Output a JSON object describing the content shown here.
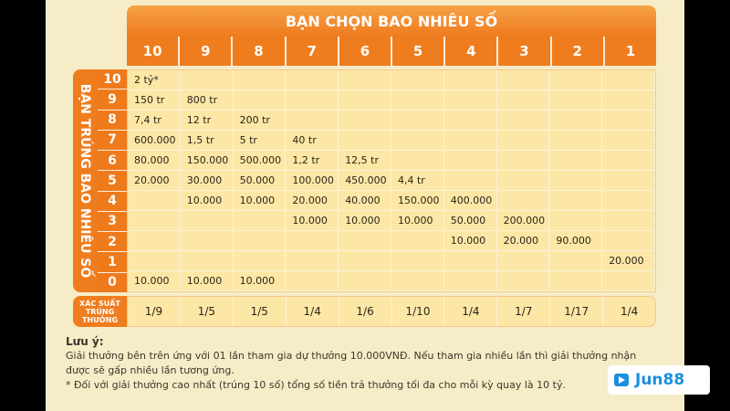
{
  "header": {
    "title": "BẠN CHỌN BAO NHIÊU SỐ",
    "columns": [
      "10",
      "9",
      "8",
      "7",
      "6",
      "5",
      "4",
      "3",
      "2",
      "1"
    ]
  },
  "side_label": "BẠN TRÚNG BAO NHIÊU SỐ",
  "row_labels": [
    "10",
    "9",
    "8",
    "7",
    "6",
    "5",
    "4",
    "3",
    "2",
    "1",
    "0"
  ],
  "prize_table": [
    [
      "2 tỷ*",
      "",
      "",
      "",
      "",
      "",
      "",
      "",
      "",
      ""
    ],
    [
      "150 tr",
      "800 tr",
      "",
      "",
      "",
      "",
      "",
      "",
      "",
      ""
    ],
    [
      "7,4 tr",
      "12 tr",
      "200 tr",
      "",
      "",
      "",
      "",
      "",
      "",
      ""
    ],
    [
      "600.000",
      "1,5 tr",
      "5 tr",
      "40 tr",
      "",
      "",
      "",
      "",
      "",
      ""
    ],
    [
      "80.000",
      "150.000",
      "500.000",
      "1,2 tr",
      "12,5 tr",
      "",
      "",
      "",
      "",
      ""
    ],
    [
      "20.000",
      "30.000",
      "50.000",
      "100.000",
      "450.000",
      "4,4 tr",
      "",
      "",
      "",
      ""
    ],
    [
      "",
      "10.000",
      "10.000",
      "20.000",
      "40.000",
      "150.000",
      "400.000",
      "",
      "",
      ""
    ],
    [
      "",
      "",
      "",
      "10.000",
      "10.000",
      "10.000",
      "50.000",
      "200.000",
      "",
      ""
    ],
    [
      "",
      "",
      "",
      "",
      "",
      "",
      "10.000",
      "20.000",
      "90.000",
      ""
    ],
    [
      "",
      "",
      "",
      "",
      "",
      "",
      "",
      "",
      "",
      "20.000"
    ],
    [
      "10.000",
      "10.000",
      "10.000",
      "",
      "",
      "",
      "",
      "",
      "",
      ""
    ]
  ],
  "probability": {
    "label_lines": [
      "XÁC SUẤT",
      "TRÚNG",
      "THƯỞNG"
    ],
    "values": [
      "1/9",
      "1/5",
      "1/5",
      "1/4",
      "1/6",
      "1/10",
      "1/4",
      "1/7",
      "1/17",
      "1/4"
    ]
  },
  "note": {
    "title": "Lưu ý:",
    "line1": "Giải thưởng bên trên ứng với 01 lần tham gia dự thưởng 10.000VNĐ. Nếu tham gia nhiều lần thì giải thưởng nhận",
    "line2": "được sẽ gấp nhiều lần tương ứng.",
    "line3": "*  Đối với giải thưởng cao nhất (trúng 10 số) tổng số tiền trả thưởng tối đa cho mỗi kỳ quay là 10 tỷ."
  },
  "logo": {
    "text": "Jun88",
    "color": "#1a8fe0"
  }
}
